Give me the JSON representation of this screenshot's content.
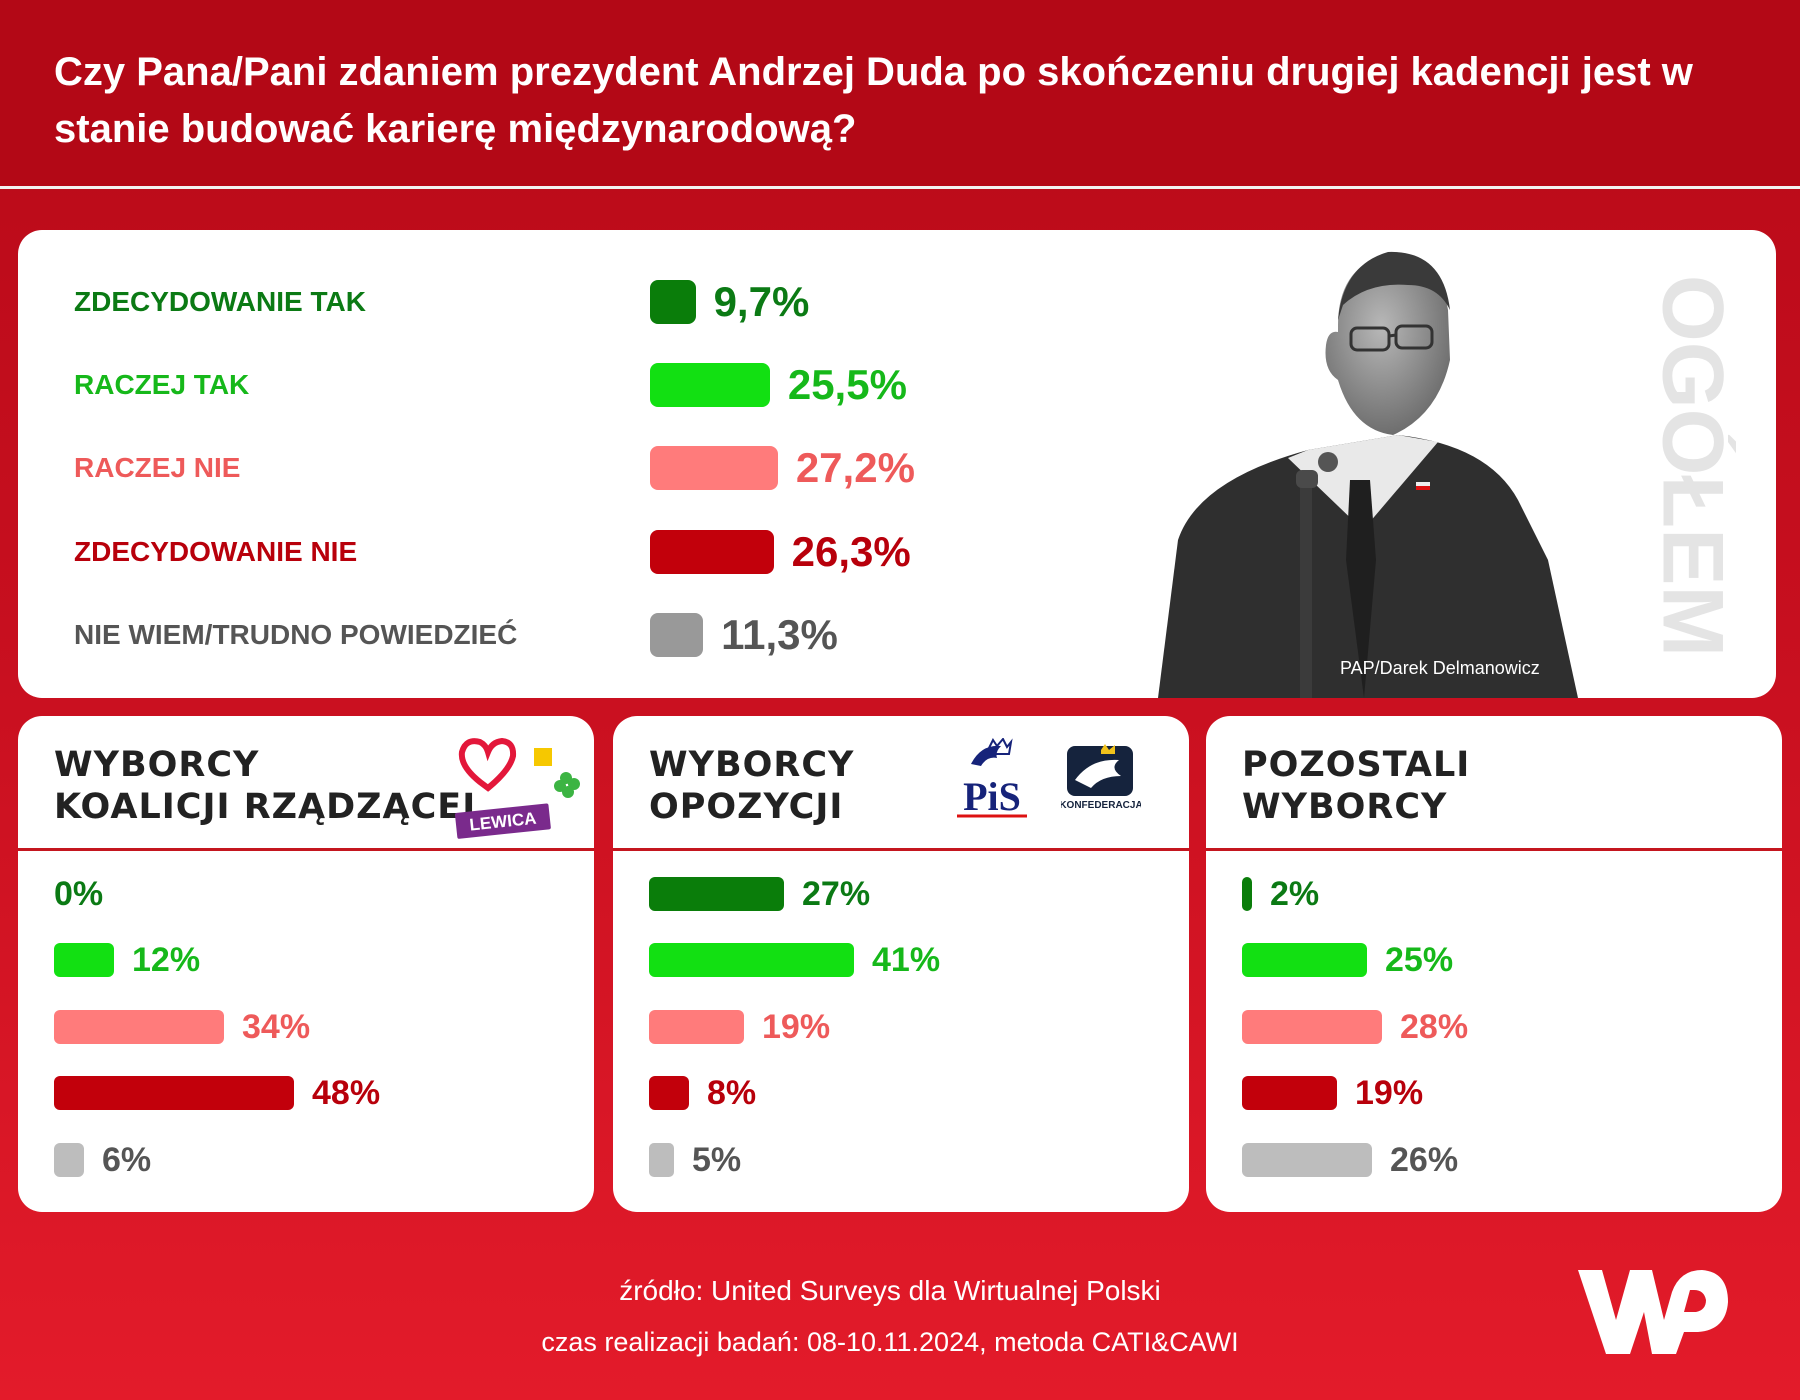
{
  "header": {
    "title": "Czy Pana/Pani zdaniem prezydent Andrzej Duda po skończeniu drugiej kadencji jest w stanie budować karierę międzynarodową?"
  },
  "colors": {
    "zdecydowanie_tak": "#0a7d0a",
    "raczej_tak": "#12e012",
    "raczej_nie": "#ff7b7b",
    "zdecydowanie_nie": "#c2000b",
    "nie_wiem": "#999999",
    "nie_wiem_segment": "#bdbdbd",
    "label_zdecydowanie_tak": "#0b7a14",
    "label_raczej_tak": "#16b81a",
    "label_raczej_nie": "#ee5a5a",
    "label_zdecydowanie_nie": "#b8000b",
    "label_nie_wiem": "#555555"
  },
  "overall": {
    "section_label": "OGÓŁEM",
    "photo_credit": "PAP/Darek Delmanowicz"
  },
  "segments": {
    "koalicja": {
      "title_line1": "WYBORCY",
      "title_line2": "KOALICJI RZĄDZĄCEJ",
      "logo_text": "LEWICA"
    },
    "opozycja": {
      "title_line1": "WYBORCY",
      "title_line2": "OPOZYCJI",
      "logo_text_pis": "PiS",
      "logo_text_konf": "KONFEDERACJA"
    },
    "pozostali": {
      "title_line1": "POZOSTALI",
      "title_line2": "WYBORCY"
    }
  },
  "chart_data": [
    {
      "type": "bar",
      "id": "ogolem",
      "title": "OGÓŁEM",
      "categories": [
        "ZDECYDOWANIE TAK",
        "RACZEJ TAK",
        "RACZEJ NIE",
        "ZDECYDOWANIE NIE",
        "NIE WIEM/TRUDNO POWIEDZIEĆ"
      ],
      "values": [
        9.7,
        25.5,
        27.2,
        26.3,
        11.3
      ],
      "value_labels": [
        "9,7%",
        "25,5%",
        "27,2%",
        "26,3%",
        "11,3%"
      ]
    },
    {
      "type": "bar",
      "id": "koalicja",
      "title": "WYBORCY KOALICJI RZĄDZĄCEJ",
      "categories": [
        "ZDECYDOWANIE TAK",
        "RACZEJ TAK",
        "RACZEJ NIE",
        "ZDECYDOWANIE NIE",
        "NIE WIEM/TRUDNO POWIEDZIEĆ"
      ],
      "values": [
        0,
        12,
        34,
        48,
        6
      ],
      "value_labels": [
        "0%",
        "12%",
        "34%",
        "48%",
        "6%"
      ]
    },
    {
      "type": "bar",
      "id": "opozycja",
      "title": "WYBORCY OPOZYCJI",
      "categories": [
        "ZDECYDOWANIE TAK",
        "RACZEJ TAK",
        "RACZEJ NIE",
        "ZDECYDOWANIE NIE",
        "NIE WIEM/TRUDNO POWIEDZIEĆ"
      ],
      "values": [
        27,
        41,
        19,
        8,
        5
      ],
      "value_labels": [
        "27%",
        "41%",
        "19%",
        "8%",
        "5%"
      ]
    },
    {
      "type": "bar",
      "id": "pozostali",
      "title": "POZOSTALI WYBORCY",
      "categories": [
        "ZDECYDOWANIE TAK",
        "RACZEJ TAK",
        "RACZEJ NIE",
        "ZDECYDOWANIE NIE",
        "NIE WIEM/TRUDNO POWIEDZIEĆ"
      ],
      "values": [
        2,
        25,
        28,
        19,
        26
      ],
      "value_labels": [
        "2%",
        "25%",
        "28%",
        "19%",
        "26%"
      ]
    }
  ],
  "footer": {
    "source": "źródło: United Surveys dla Wirtualnej Polski",
    "method": "czas realizacji badań: 08-10.11.2024, metoda CATI&CAWI",
    "logo_text": "WP"
  }
}
